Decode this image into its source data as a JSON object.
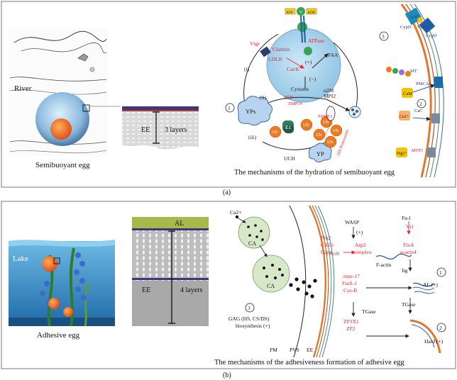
{
  "panel_a": {
    "caption": "(a)",
    "egg_title": "Semibuoyant egg",
    "habitat": "River",
    "section_label": "EE",
    "section_layers": "3 layers",
    "mechanism_title": "The mechanisms of the hydration of semibuoyant egg",
    "labels": {
      "yps": "YPs",
      "yp": "YP",
      "faa": "FAA",
      "vtgr": "Vtgr",
      "lrp": "LDLR",
      "clathrin": "Clathrin",
      "atpase": "ATPase",
      "atp": "ATP",
      "adp": "ADP",
      "v": "V",
      "cathk": "Cat/K",
      "cystatin": "Cystatin",
      "plus": "(+)",
      "minus": "(−)",
      "zfp": "ZFP",
      "zmp14": "ZMP14",
      "a2m": "α2M",
      "mpi2": "MPI2",
      "ub": "Ub",
      "e1": "E1",
      "uch": "UCH",
      "psme3": "PSME3",
      "proteasome": "26S Proteasome",
      "path1": "(i)",
      "path2": "(ii)",
      "path3": "(iii)",
      "circ1": "1",
      "circ2": "2",
      "circ3": "3",
      "cypd": "CypD",
      "vdac": "VDAC",
      "ant": "ANT",
      "mt": "MT",
      "pmca4": "PMCA4",
      "cam": "CaM",
      "ca2": "Ca2+",
      "cac": "CaC",
      "mg2": "Mg2+",
      "mtp": "MTP1"
    }
  },
  "panel_b": {
    "caption": "(b)",
    "egg_title": "Adhesive egg",
    "habitat": "Lake",
    "section_al": "AL",
    "section_label": "EE",
    "section_layers": "4 layers",
    "mechanism_title": "The mechanisms of the adhesiveness formation of adhesive egg",
    "labels": {
      "ca2": "Ca2+",
      "ca": "CA",
      "gag": "GAG (HS, CS/DS)",
      "biosynthesis": "biosynthesis (+)",
      "pm": "PM",
      "pvs": "PVS",
      "ee": "EE",
      "pfn2": "Pfn2",
      "cfl21": "Cfl2-l",
      "capz": "Capz",
      "actb": "Actb",
      "wasp": "WASP",
      "plus": "(+)",
      "arp2": "Arp2",
      "complex": "complex",
      "factin": "F-actin",
      "fn1": "Fn-l",
      "vcl": "Vcl",
      "flna": "FlnA",
      "actn4": "α-actn4",
      "itg": "Itg",
      "muc17": "muc-17",
      "fucl1": "FucL-l",
      "cysb": "Cys-B",
      "tgase1": "TGase",
      "tgase2": "TGase",
      "zp3x1": "ZP3X1",
      "zp2": "ZP2",
      "al_plus": "AL (+)",
      "hard_plus": "Hard (+)",
      "circ1": "1",
      "circ2": "2",
      "circ3": "3"
    }
  },
  "colors": {
    "red": "#e8232a",
    "blue": "#2e5ea8",
    "orange": "#f07a1d",
    "cell_blue": "#aed6ee",
    "green_cell": "#d7e8c8",
    "membrane_orange": "#e0782a",
    "lake_bg": "#4a9fd0"
  }
}
